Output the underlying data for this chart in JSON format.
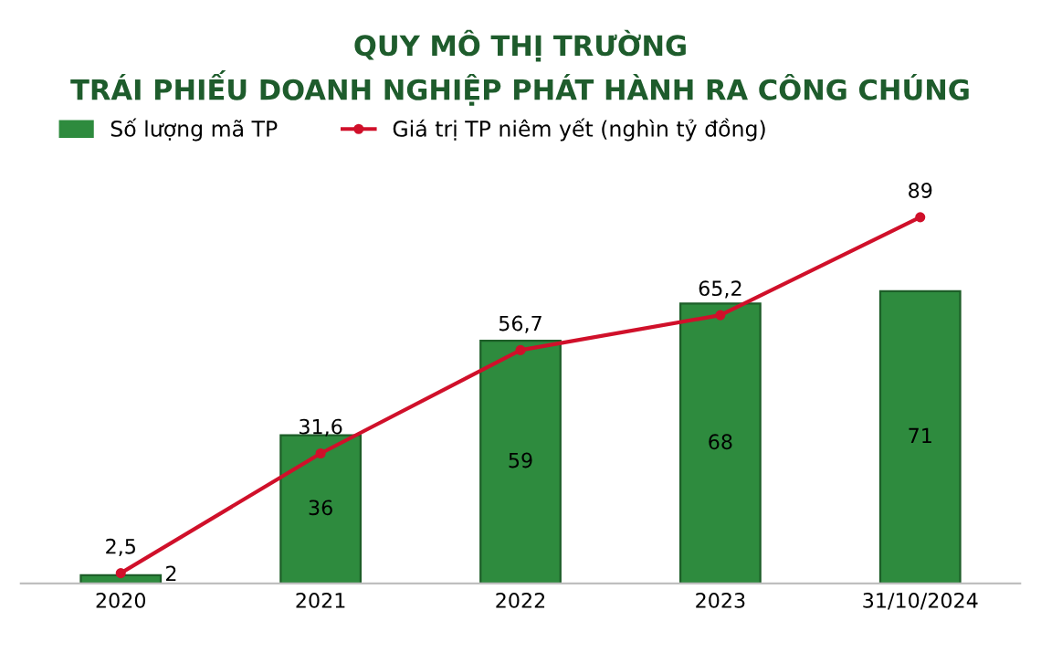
{
  "chart_data": {
    "type": "bar",
    "title": "QUY MÔ THỊ TRƯỜNG\nTRÁI PHIẾU DOANH NGHIỆP PHÁT HÀNH RA CÔNG CHÚNG",
    "categories": [
      "2020",
      "2021",
      "2022",
      "2023",
      "31/10/2024"
    ],
    "series": [
      {
        "name": "Số lượng mã TP",
        "color": "#2e8b3e",
        "values": [
          2,
          36,
          59,
          68,
          71
        ],
        "value_labels": [
          "2",
          "36",
          "59",
          "68",
          "71"
        ]
      },
      {
        "name": "Giá trị TP niêm yết (nghìn tỷ đồng)",
        "type": "line",
        "color": "#d0102a",
        "marker": "circle",
        "values": [
          2.5,
          31.6,
          56.7,
          65.2,
          89
        ],
        "value_labels": [
          "2,5",
          "31,6",
          "56,7",
          "65,2",
          "89"
        ]
      }
    ],
    "tick_labels": "x",
    "grid": false,
    "legend": "top left"
  }
}
